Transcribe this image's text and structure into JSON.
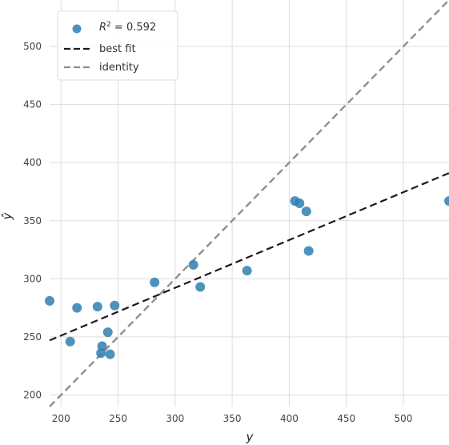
{
  "chart_data": {
    "type": "scatter",
    "title": "",
    "xlabel": "y",
    "ylabel": "ŷ",
    "xlim": [
      190,
      540
    ],
    "ylim": [
      190,
      540
    ],
    "xticks": [
      200,
      250,
      300,
      350,
      400,
      450,
      500
    ],
    "yticks": [
      200,
      250,
      300,
      350,
      400,
      450,
      500
    ],
    "grid": true,
    "legend_position": "top-left",
    "legend": {
      "r2_prefix": "R",
      "r2_sup": "2",
      "r2_suffix": " = 0.592",
      "best_fit_label": "best fit",
      "identity_label": "identity"
    },
    "colors": {
      "points": "#2f7fb0",
      "best_fit": "#1a1a1a",
      "identity": "#8f8f8f",
      "grid": "#dddddd"
    },
    "points": [
      {
        "x": 190,
        "y": 281
      },
      {
        "x": 208,
        "y": 246
      },
      {
        "x": 214,
        "y": 275
      },
      {
        "x": 232,
        "y": 276
      },
      {
        "x": 235,
        "y": 236
      },
      {
        "x": 236,
        "y": 242
      },
      {
        "x": 241,
        "y": 254
      },
      {
        "x": 243,
        "y": 235
      },
      {
        "x": 247,
        "y": 277
      },
      {
        "x": 282,
        "y": 297
      },
      {
        "x": 316,
        "y": 312
      },
      {
        "x": 322,
        "y": 293
      },
      {
        "x": 363,
        "y": 307
      },
      {
        "x": 405,
        "y": 367
      },
      {
        "x": 409,
        "y": 365
      },
      {
        "x": 415,
        "y": 358
      },
      {
        "x": 417,
        "y": 324
      },
      {
        "x": 540,
        "y": 367
      }
    ],
    "best_fit_line": {
      "x": [
        190,
        540
      ],
      "y": [
        247,
        391
      ]
    },
    "identity_line": {
      "x": [
        190,
        540
      ],
      "y": [
        190,
        540
      ]
    }
  }
}
